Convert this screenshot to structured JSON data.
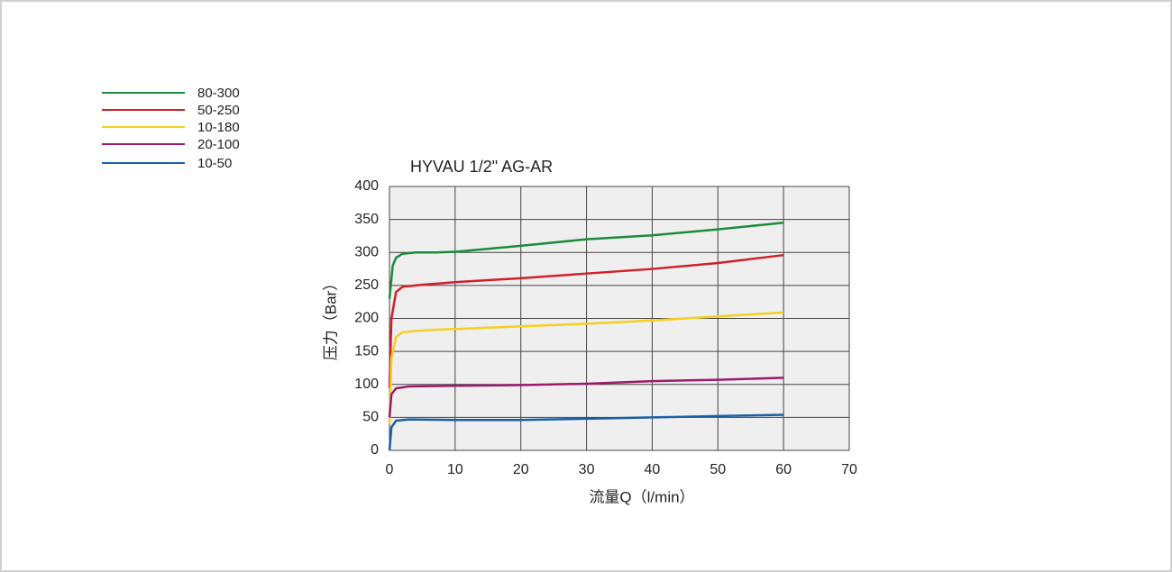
{
  "chart_data": {
    "type": "line",
    "title": "HYVAU 1/2\" AG-AR",
    "x_label": "流量Q（l/min）",
    "y_label": "压力（Bar）",
    "xlim": [
      0,
      70
    ],
    "xticks": [
      0,
      10,
      20,
      30,
      40,
      50,
      60,
      70
    ],
    "ylim": [
      0,
      400
    ],
    "yticks": [
      0,
      50,
      100,
      150,
      200,
      250,
      300,
      350,
      400
    ],
    "grid": true,
    "legend": "top-left",
    "series": [
      {
        "name": "80-300",
        "color": "#1a8c3a",
        "x": [
          0,
          0.5,
          1,
          2,
          4,
          7,
          10,
          20,
          30,
          40,
          50,
          60
        ],
        "values": [
          230,
          280,
          292,
          298,
          300,
          300,
          301,
          310,
          320,
          326,
          335,
          345
        ]
      },
      {
        "name": "50-250",
        "color": "#d0202a",
        "x": [
          0,
          0.3,
          1,
          2,
          5,
          10,
          20,
          30,
          40,
          50,
          60
        ],
        "values": [
          95,
          200,
          240,
          248,
          251,
          255,
          261,
          268,
          275,
          284,
          296
        ]
      },
      {
        "name": "10-180",
        "color": "#f5d020",
        "x": [
          0,
          0.3,
          1,
          2,
          5,
          10,
          20,
          30,
          40,
          50,
          60
        ],
        "values": [
          40,
          140,
          172,
          179,
          182,
          184,
          188,
          192,
          197,
          203,
          209
        ]
      },
      {
        "name": "20-100",
        "color": "#9c1a6e",
        "x": [
          0,
          0.3,
          1,
          3,
          10,
          20,
          30,
          40,
          50,
          60
        ],
        "values": [
          50,
          85,
          94,
          97,
          98,
          99,
          101,
          105,
          107,
          110
        ]
      },
      {
        "name": "10-50",
        "color": "#1a5fa8",
        "x": [
          0,
          0.3,
          1,
          3,
          10,
          20,
          30,
          40,
          50,
          60
        ],
        "values": [
          0,
          35,
          45,
          47,
          46,
          46,
          48,
          50,
          52,
          54
        ]
      }
    ]
  }
}
